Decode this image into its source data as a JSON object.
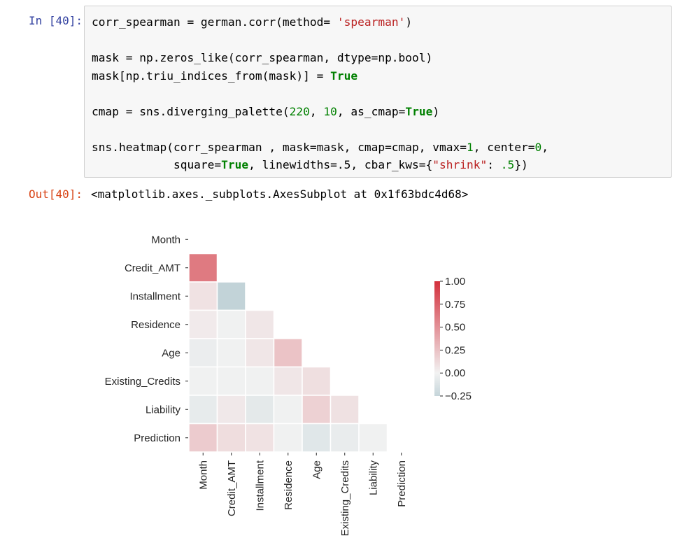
{
  "input_cell": {
    "prompt": "In [40]:",
    "lines": [
      [
        {
          "t": "corr_spearman = german.corr(method= "
        },
        {
          "t": "'spearman'",
          "c": "str"
        },
        {
          "t": ")"
        }
      ],
      [],
      [
        {
          "t": "mask = np.zeros_like(corr_spearman, dtype=np.bool)"
        }
      ],
      [
        {
          "t": "mask[np.triu_indices_from(mask)] = "
        },
        {
          "t": "True",
          "c": "kw"
        }
      ],
      [],
      [
        {
          "t": "cmap = sns.diverging_palette("
        },
        {
          "t": "220",
          "c": "num"
        },
        {
          "t": ", "
        },
        {
          "t": "10",
          "c": "num"
        },
        {
          "t": ", as_cmap="
        },
        {
          "t": "True",
          "c": "kw"
        },
        {
          "t": ")"
        }
      ],
      [],
      [
        {
          "t": "sns.heatmap(corr_spearman , mask=mask, cmap=cmap, vmax="
        },
        {
          "t": "1",
          "c": "num"
        },
        {
          "t": ", center="
        },
        {
          "t": "0",
          "c": "num"
        },
        {
          "t": ","
        }
      ],
      [
        {
          "t": "            square="
        },
        {
          "t": "True",
          "c": "kw"
        },
        {
          "t": ", linewidths=.5, cbar_kws={"
        },
        {
          "t": "\"shrink\"",
          "c": "str"
        },
        {
          "t": ": "
        },
        {
          "t": ".5",
          "c": "num"
        },
        {
          "t": "})"
        }
      ]
    ]
  },
  "output_cell": {
    "prompt": "Out[40]:",
    "text": "<matplotlib.axes._subplots.AxesSubplot at 0x1f63bdc4d68>"
  },
  "chart_data": {
    "type": "heatmap",
    "labels": [
      "Month",
      "Credit_AMT",
      "Installment",
      "Residence",
      "Age",
      "Existing_Credits",
      "Liability",
      "Prediction"
    ],
    "mask": "upper-triangle-including-diagonal",
    "lower_triangle_values": [
      [],
      [
        0.62
      ],
      [
        0.08,
        -0.27
      ],
      [
        0.04,
        -0.01,
        0.06
      ],
      [
        -0.04,
        -0.01,
        0.06,
        0.24
      ],
      [
        -0.01,
        -0.01,
        -0.01,
        0.06,
        0.1
      ],
      [
        -0.06,
        0.05,
        -0.08,
        -0.01,
        0.17,
        0.09
      ],
      [
        0.2,
        0.11,
        0.08,
        -0.01,
        -0.1,
        -0.05,
        -0.01
      ]
    ],
    "colorbar": {
      "vmin": -0.25,
      "vmax": 1.0,
      "center": 0,
      "ticks": [
        1.0,
        0.75,
        0.5,
        0.25,
        0.0,
        -0.25
      ],
      "tick_labels": [
        "1.00",
        "0.75",
        "0.50",
        "0.25",
        "0.00",
        "−0.25"
      ]
    },
    "colors": {
      "negative": "#3f7f93",
      "center": "#f2f2f2",
      "positive": "#d3303c"
    }
  }
}
